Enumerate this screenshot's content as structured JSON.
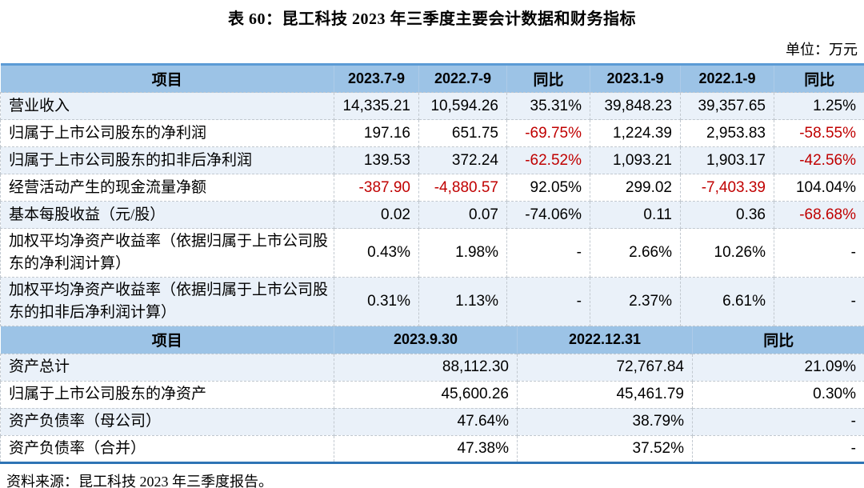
{
  "title": "表 60：昆工科技 2023 年三季度主要会计数据和财务指标",
  "unit_label": "单位：万元",
  "source_note": "资料来源：昆工科技 2023 年三季度报告。",
  "colors": {
    "header_bg": "#9CC3E6",
    "row_tint": "#EAF1F9",
    "negative": "#C00000",
    "top_border": "#5B9BD5",
    "bottom_border": "#2E74B5"
  },
  "quarter_table": {
    "headers": [
      "项目",
      "2023.7-9",
      "2022.7-9",
      "同比",
      "2023.1-9",
      "2022.1-9",
      "同比"
    ],
    "rows": [
      {
        "label": "营业收入",
        "cells": [
          {
            "v": "14,335.21"
          },
          {
            "v": "10,594.26"
          },
          {
            "v": "35.31%"
          },
          {
            "v": "39,848.23"
          },
          {
            "v": "39,357.65"
          },
          {
            "v": "1.25%"
          }
        ]
      },
      {
        "label": "归属于上市公司股东的净利润",
        "cells": [
          {
            "v": "197.16"
          },
          {
            "v": "651.75"
          },
          {
            "v": "-69.75%",
            "neg": true
          },
          {
            "v": "1,224.39"
          },
          {
            "v": "2,953.83"
          },
          {
            "v": "-58.55%",
            "neg": true
          }
        ]
      },
      {
        "label": "归属于上市公司股东的扣非后净利润",
        "cells": [
          {
            "v": "139.53"
          },
          {
            "v": "372.24"
          },
          {
            "v": "-62.52%",
            "neg": true
          },
          {
            "v": "1,093.21"
          },
          {
            "v": "1,903.17"
          },
          {
            "v": "-42.56%",
            "neg": true
          }
        ]
      },
      {
        "label": "经营活动产生的现金流量净额",
        "cells": [
          {
            "v": "-387.90",
            "neg": true
          },
          {
            "v": "-4,880.57",
            "neg": true
          },
          {
            "v": "92.05%"
          },
          {
            "v": "299.02"
          },
          {
            "v": "-7,403.39",
            "neg": true
          },
          {
            "v": "104.04%"
          }
        ]
      },
      {
        "label": "基本每股收益（元/股）",
        "cells": [
          {
            "v": "0.02"
          },
          {
            "v": "0.07"
          },
          {
            "v": "-74.06%"
          },
          {
            "v": "0.11"
          },
          {
            "v": "0.36"
          },
          {
            "v": "-68.68%",
            "neg": true
          }
        ]
      },
      {
        "label": "加权平均净资产收益率（依据归属于上市公司股东的净利润计算）",
        "cells": [
          {
            "v": "0.43%"
          },
          {
            "v": "1.98%"
          },
          {
            "v": "-"
          },
          {
            "v": "2.66%"
          },
          {
            "v": "10.26%"
          },
          {
            "v": "-"
          }
        ]
      },
      {
        "label": "加权平均净资产收益率（依据归属于上市公司股东的扣非后净利润计算）",
        "cells": [
          {
            "v": "0.31%"
          },
          {
            "v": "1.13%"
          },
          {
            "v": "-"
          },
          {
            "v": "2.37%"
          },
          {
            "v": "6.61%"
          },
          {
            "v": "-"
          }
        ]
      }
    ]
  },
  "balance_table": {
    "headers": [
      "项目",
      "2023.9.30",
      "2022.12.31",
      "同比"
    ],
    "rows": [
      {
        "label": "资产总计",
        "cells": [
          {
            "v": "88,112.30"
          },
          {
            "v": "72,767.84"
          },
          {
            "v": "21.09%"
          }
        ]
      },
      {
        "label": "归属于上市公司股东的净资产",
        "cells": [
          {
            "v": "45,600.26"
          },
          {
            "v": "45,461.79"
          },
          {
            "v": "0.30%"
          }
        ]
      },
      {
        "label": "资产负债率（母公司）",
        "cells": [
          {
            "v": "47.64%"
          },
          {
            "v": "38.79%"
          },
          {
            "v": "-"
          }
        ]
      },
      {
        "label": "资产负债率（合并）",
        "cells": [
          {
            "v": "47.38%"
          },
          {
            "v": "37.52%"
          },
          {
            "v": "-"
          }
        ]
      }
    ]
  }
}
